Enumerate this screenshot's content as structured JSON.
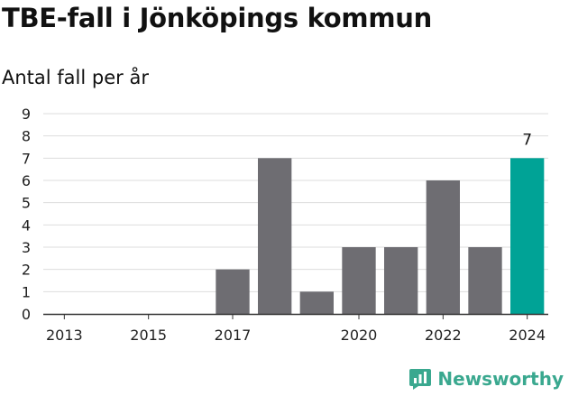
{
  "header": {
    "title": "TBE-fall i Jönköpings kommun",
    "subtitle": "Antal fall per år"
  },
  "brand": {
    "name": "Newsworthy",
    "logo_icon": "bar-chart-speech-bubble-icon",
    "color": "#3aa88f"
  },
  "chart_data": {
    "type": "bar",
    "title": "TBE-fall i Jönköpings kommun",
    "subtitle": "Antal fall per år",
    "xlabel": "",
    "ylabel": "",
    "categories": [
      2013,
      2014,
      2015,
      2016,
      2017,
      2018,
      2019,
      2020,
      2021,
      2022,
      2023,
      2024
    ],
    "values": [
      0,
      0,
      0,
      0,
      2,
      7,
      1,
      3,
      3,
      6,
      3,
      7
    ],
    "x_tick_labels": [
      "2013",
      "2015",
      "2017",
      "2020",
      "2022",
      "2024"
    ],
    "y_ticks": [
      0,
      1,
      2,
      3,
      4,
      5,
      6,
      7,
      8,
      9
    ],
    "ylim": [
      0,
      9
    ],
    "grid": true,
    "legend": "none",
    "highlight": {
      "category": 2024,
      "label": "7"
    },
    "colors": {
      "bar": "#6e6d72",
      "highlight": "#00a396",
      "grid": "#dddddd",
      "axis": "#333333"
    }
  }
}
